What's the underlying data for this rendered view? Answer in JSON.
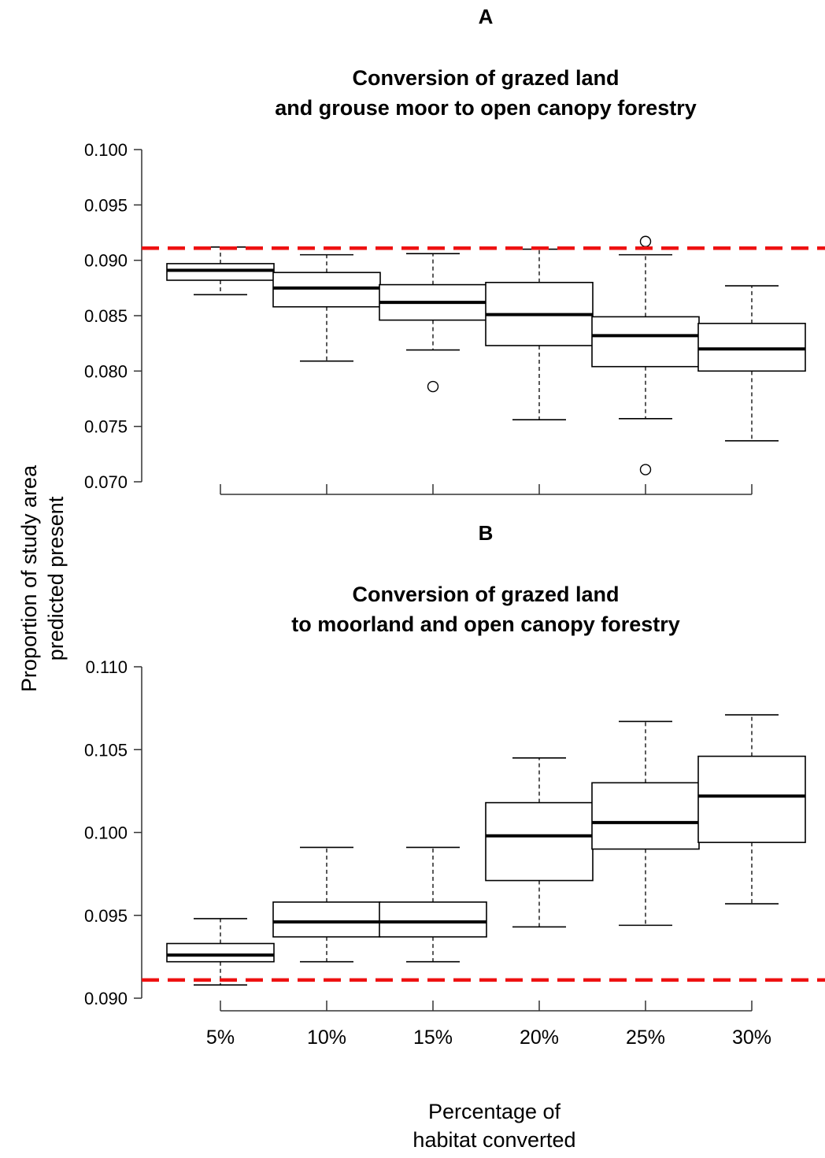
{
  "chart_data": [
    {
      "panel_label": "A",
      "type": "box",
      "title_lines": [
        "Conversion of grazed land",
        "and grouse moor to open canopy forestry"
      ],
      "categories": [
        "5%",
        "10%",
        "15%",
        "20%",
        "25%",
        "30%"
      ],
      "ylim": [
        0.07,
        0.1
      ],
      "yticks": [
        0.07,
        0.075,
        0.08,
        0.085,
        0.09,
        0.095,
        0.1
      ],
      "ytick_labels": [
        "0.070",
        "0.075",
        "0.080",
        "0.085",
        "0.090",
        "0.095",
        "0.100"
      ],
      "reference_line": {
        "value": 0.0911,
        "color": "#ee1111",
        "style": "dashed"
      },
      "boxes": [
        {
          "category": "5%",
          "whisker_low": 0.0869,
          "q1": 0.0882,
          "median": 0.0891,
          "q3": 0.0897,
          "whisker_high": 0.0912,
          "outliers": []
        },
        {
          "category": "10%",
          "whisker_low": 0.0809,
          "q1": 0.0858,
          "median": 0.0875,
          "q3": 0.0889,
          "whisker_high": 0.0905,
          "outliers": []
        },
        {
          "category": "15%",
          "whisker_low": 0.0819,
          "q1": 0.0846,
          "median": 0.0862,
          "q3": 0.0878,
          "whisker_high": 0.0906,
          "outliers": [
            0.0786
          ]
        },
        {
          "category": "20%",
          "whisker_low": 0.0756,
          "q1": 0.0823,
          "median": 0.0851,
          "q3": 0.088,
          "whisker_high": 0.091,
          "outliers": []
        },
        {
          "category": "25%",
          "whisker_low": 0.0757,
          "q1": 0.0804,
          "median": 0.0832,
          "q3": 0.0849,
          "whisker_high": 0.0905,
          "outliers": [
            0.0917,
            0.0711
          ]
        },
        {
          "category": "30%",
          "whisker_low": 0.0737,
          "q1": 0.08,
          "median": 0.082,
          "q3": 0.0843,
          "whisker_high": 0.0877,
          "outliers": []
        }
      ]
    },
    {
      "panel_label": "B",
      "type": "box",
      "title_lines": [
        "Conversion of grazed land",
        "to moorland and open canopy forestry"
      ],
      "categories": [
        "5%",
        "10%",
        "15%",
        "20%",
        "25%",
        "30%"
      ],
      "ylim": [
        0.09,
        0.11
      ],
      "yticks": [
        0.09,
        0.095,
        0.1,
        0.105,
        0.11
      ],
      "ytick_labels": [
        "0.090",
        "0.095",
        "0.100",
        "0.105",
        "0.110"
      ],
      "reference_line": {
        "value": 0.0911,
        "color": "#ee1111",
        "style": "dashed"
      },
      "boxes": [
        {
          "category": "5%",
          "whisker_low": 0.0908,
          "q1": 0.0922,
          "median": 0.0926,
          "q3": 0.0933,
          "whisker_high": 0.0948,
          "outliers": []
        },
        {
          "category": "10%",
          "whisker_low": 0.0922,
          "q1": 0.0937,
          "median": 0.0946,
          "q3": 0.0958,
          "whisker_high": 0.0991,
          "outliers": []
        },
        {
          "category": "15%",
          "whisker_low": 0.0922,
          "q1": 0.0937,
          "median": 0.0946,
          "q3": 0.0958,
          "whisker_high": 0.0991,
          "outliers": []
        },
        {
          "category": "20%",
          "whisker_low": 0.0943,
          "q1": 0.0971,
          "median": 0.0998,
          "q3": 0.1018,
          "whisker_high": 0.1045,
          "outliers": []
        },
        {
          "category": "25%",
          "whisker_low": 0.0944,
          "q1": 0.099,
          "median": 0.1006,
          "q3": 0.103,
          "whisker_high": 0.1067,
          "outliers": []
        },
        {
          "category": "30%",
          "whisker_low": 0.0957,
          "q1": 0.0994,
          "median": 0.1022,
          "q3": 0.1046,
          "whisker_high": 0.1071,
          "outliers": []
        }
      ]
    }
  ],
  "ylabel_lines": [
    "Proportion of study area",
    "predicted present"
  ],
  "xlabel_lines": [
    "Percentage of",
    "habitat converted"
  ],
  "colors": {
    "reference_line": "#ee1111",
    "box_stroke": "#000000",
    "box_fill": "#ffffff"
  }
}
